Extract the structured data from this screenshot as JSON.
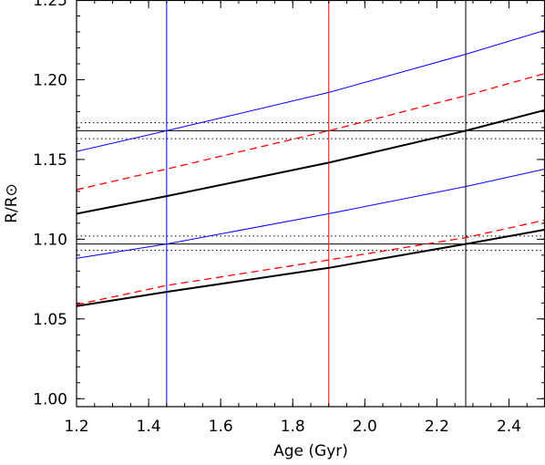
{
  "chart_data": {
    "type": "line",
    "xlabel": "Age (Gyr)",
    "ylabel": "R/R⊙",
    "xlim": [
      1.2,
      2.5
    ],
    "ylim": [
      0.995,
      1.25
    ],
    "xticks": [
      1.2,
      1.4,
      1.6,
      1.8,
      2.0,
      2.2,
      2.4
    ],
    "xtick_labels": [
      "1.2",
      "1.4",
      "1.6",
      "1.8",
      "2.0",
      "2.2",
      "2.4"
    ],
    "yticks": [
      1.0,
      1.05,
      1.1,
      1.15,
      1.2,
      1.25
    ],
    "ytick_labels": [
      "1.00",
      "1.05",
      "1.10",
      "1.15",
      "1.20",
      "1.25"
    ],
    "grid": false,
    "series": [
      {
        "color": "#0000ff",
        "style": "solid",
        "width": 1,
        "x": [
          1.2,
          1.45,
          1.9,
          2.28,
          2.5
        ],
        "y": [
          1.155,
          1.168,
          1.192,
          1.216,
          1.231
        ]
      },
      {
        "color": "#ff0000",
        "style": "dashed",
        "width": 1.3,
        "x": [
          1.2,
          1.45,
          1.9,
          2.28,
          2.5
        ],
        "y": [
          1.131,
          1.144,
          1.168,
          1.19,
          1.204
        ]
      },
      {
        "color": "#000000",
        "style": "solid",
        "width": 2,
        "x": [
          1.2,
          1.45,
          1.9,
          2.28,
          2.5
        ],
        "y": [
          1.116,
          1.127,
          1.148,
          1.168,
          1.181
        ]
      },
      {
        "color": "#0000ff",
        "style": "solid",
        "width": 1,
        "x": [
          1.2,
          1.45,
          1.9,
          2.28,
          2.5
        ],
        "y": [
          1.088,
          1.097,
          1.116,
          1.133,
          1.144
        ]
      },
      {
        "color": "#ff0000",
        "style": "dashed",
        "width": 1.3,
        "x": [
          1.2,
          1.45,
          1.9,
          2.28,
          2.5
        ],
        "y": [
          1.059,
          1.071,
          1.087,
          1.101,
          1.112
        ]
      },
      {
        "color": "#000000",
        "style": "solid",
        "width": 2,
        "x": [
          1.2,
          1.45,
          1.9,
          2.28,
          2.5
        ],
        "y": [
          1.058,
          1.067,
          1.082,
          1.097,
          1.106
        ]
      }
    ],
    "hlines": [
      {
        "y": 1.173,
        "style": "dotted",
        "color": "#000000"
      },
      {
        "y": 1.168,
        "style": "solid",
        "color": "#000000"
      },
      {
        "y": 1.163,
        "style": "dotted",
        "color": "#000000"
      },
      {
        "y": 1.102,
        "style": "dotted",
        "color": "#000000"
      },
      {
        "y": 1.097,
        "style": "solid",
        "color": "#000000"
      },
      {
        "y": 1.093,
        "style": "dotted",
        "color": "#000000"
      }
    ],
    "vlines": [
      {
        "x": 1.45,
        "color": "#0000ff"
      },
      {
        "x": 1.9,
        "color": "#ff0000"
      },
      {
        "x": 2.28,
        "color": "#000000"
      }
    ]
  }
}
